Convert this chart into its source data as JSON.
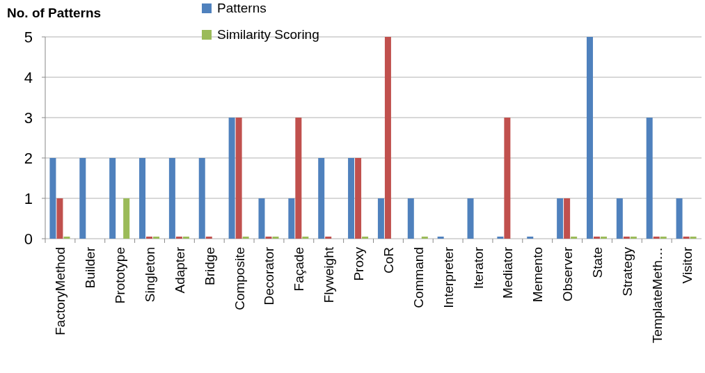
{
  "chart_data": {
    "type": "bar",
    "ylabel": "No. of Patterns",
    "categories": [
      "FactoryMethod",
      "Builder",
      "Prototype",
      "Singleton",
      "Adapter",
      "Bridge",
      "Composite",
      "Decorator",
      "Façade",
      "Flyweight",
      "Proxy",
      "CoR",
      "Command",
      "Interpreter",
      "Iterator",
      "Mediator",
      "Memento",
      "Observer",
      "State",
      "Strategy",
      "TemplateMeth…",
      "Visitor"
    ],
    "series": [
      {
        "name": "Patterns",
        "color": "#4f81bd",
        "values": [
          2,
          2,
          2,
          2,
          2,
          2,
          3,
          1,
          1,
          2,
          2,
          1,
          1,
          0,
          1,
          0,
          0,
          1,
          5,
          1,
          3,
          1
        ]
      },
      {
        "color": "#c0504d",
        "values": [
          1,
          null,
          null,
          0,
          0,
          0,
          3,
          0,
          3,
          0,
          2,
          5,
          null,
          null,
          null,
          3,
          null,
          1,
          0,
          0,
          0,
          0
        ]
      },
      {
        "name": "Similarity Scoring",
        "color": "#9bbb59",
        "values": [
          0,
          null,
          1,
          0,
          0,
          null,
          0,
          0,
          0,
          null,
          0,
          null,
          0,
          null,
          null,
          null,
          null,
          0,
          0,
          0,
          0,
          0
        ]
      }
    ],
    "ylim": [
      0,
      5
    ],
    "yticks": [
      0,
      1,
      2,
      3,
      4,
      5
    ],
    "grid": "y",
    "legend": "top"
  }
}
